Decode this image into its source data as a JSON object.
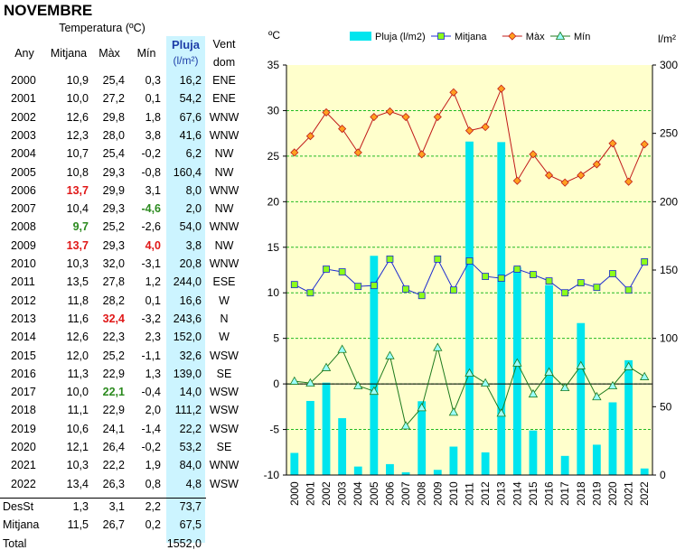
{
  "page": {
    "title": "NOVEMBRE"
  },
  "table": {
    "header": {
      "group_label": "Temperatura (ºC)",
      "any": "Any",
      "mitjana": "Mitjana",
      "max": "Màx",
      "min": "Mín",
      "pluja": "Pluja",
      "pluja_unit": "(l/m²)",
      "vent": "Vent",
      "vent_sub": "dom"
    },
    "rows": [
      {
        "any": "2000",
        "mitjana": "10,9",
        "max": "25,4",
        "min": "0,3",
        "pluja": "16,2",
        "vent": "ENE"
      },
      {
        "any": "2001",
        "mitjana": "10,0",
        "max": "27,2",
        "min": "0,1",
        "pluja": "54,2",
        "vent": "ENE"
      },
      {
        "any": "2002",
        "mitjana": "12,6",
        "max": "29,8",
        "min": "1,8",
        "pluja": "67,6",
        "vent": "WNW"
      },
      {
        "any": "2003",
        "mitjana": "12,3",
        "max": "28,0",
        "min": "3,8",
        "pluja": "41,6",
        "vent": "WNW"
      },
      {
        "any": "2004",
        "mitjana": "10,7",
        "max": "25,4",
        "min": "-0,2",
        "pluja": "6,2",
        "vent": "NW"
      },
      {
        "any": "2005",
        "mitjana": "10,8",
        "max": "29,3",
        "min": "-0,8",
        "pluja": "160,4",
        "vent": "NW"
      },
      {
        "any": "2006",
        "mitjana": "13,7",
        "max": "29,9",
        "min": "3,1",
        "pluja": "8,0",
        "vent": "WNW"
      },
      {
        "any": "2007",
        "mitjana": "10,4",
        "max": "29,3",
        "min": "-4,6",
        "pluja": "2,0",
        "vent": "NW"
      },
      {
        "any": "2008",
        "mitjana": "9,7",
        "max": "25,2",
        "min": "-2,6",
        "pluja": "54,0",
        "vent": "WNW"
      },
      {
        "any": "2009",
        "mitjana": "13,7",
        "max": "29,3",
        "min": "4,0",
        "pluja": "3,8",
        "vent": "NW"
      },
      {
        "any": "2010",
        "mitjana": "10,3",
        "max": "32,0",
        "min": "-3,1",
        "pluja": "20,8",
        "vent": "WNW"
      },
      {
        "any": "2011",
        "mitjana": "13,5",
        "max": "27,8",
        "min": "1,2",
        "pluja": "244,0",
        "vent": "ESE"
      },
      {
        "any": "2012",
        "mitjana": "11,8",
        "max": "28,2",
        "min": "0,1",
        "pluja": "16,6",
        "vent": "W"
      },
      {
        "any": "2013",
        "mitjana": "11,6",
        "max": "32,4",
        "min": "-3,2",
        "pluja": "243,6",
        "vent": "N"
      },
      {
        "any": "2014",
        "mitjana": "12,6",
        "max": "22,3",
        "min": "2,3",
        "pluja": "152,0",
        "vent": "W"
      },
      {
        "any": "2015",
        "mitjana": "12,0",
        "max": "25,2",
        "min": "-1,1",
        "pluja": "32,6",
        "vent": "WSW"
      },
      {
        "any": "2016",
        "mitjana": "11,3",
        "max": "22,9",
        "min": "1,3",
        "pluja": "139,0",
        "vent": "SE"
      },
      {
        "any": "2017",
        "mitjana": "10,0",
        "max": "22,1",
        "min": "-0,4",
        "pluja": "14,0",
        "vent": "WSW"
      },
      {
        "any": "2018",
        "mitjana": "11,1",
        "max": "22,9",
        "min": "2,0",
        "pluja": "111,2",
        "vent": "WSW"
      },
      {
        "any": "2019",
        "mitjana": "10,6",
        "max": "24,1",
        "min": "-1,4",
        "pluja": "22,2",
        "vent": "WSW"
      },
      {
        "any": "2020",
        "mitjana": "12,1",
        "max": "26,4",
        "min": "-0,2",
        "pluja": "53,2",
        "vent": "SE"
      },
      {
        "any": "2021",
        "mitjana": "10,3",
        "max": "22,2",
        "min": "1,9",
        "pluja": "84,0",
        "vent": "WNW"
      },
      {
        "any": "2022",
        "mitjana": "13,4",
        "max": "26,3",
        "min": "0,8",
        "pluja": "4,8",
        "vent": "WSW"
      }
    ],
    "highlights": {
      "red": [
        [
          "2006",
          "mitjana"
        ],
        [
          "2009",
          "mitjana"
        ],
        [
          "2013",
          "max"
        ],
        [
          "2009",
          "min"
        ]
      ],
      "green": [
        [
          "2008",
          "mitjana"
        ],
        [
          "2017",
          "max"
        ],
        [
          "2007",
          "min"
        ]
      ]
    },
    "summary": [
      {
        "label": "DesSt",
        "mitjana": "1,3",
        "max": "3,1",
        "min": "2,2",
        "pluja": "73,7"
      },
      {
        "label": "Mitjana",
        "mitjana": "11,5",
        "max": "26,7",
        "min": "0,2",
        "pluja": "67,5"
      },
      {
        "label": "Total",
        "mitjana": "",
        "max": "",
        "min": "",
        "pluja": "1552,0"
      }
    ]
  },
  "chart_data": {
    "type": "bar+line",
    "categories": [
      "2000",
      "2001",
      "2002",
      "2003",
      "2004",
      "2005",
      "2006",
      "2007",
      "2008",
      "2009",
      "2010",
      "2011",
      "2012",
      "2013",
      "2014",
      "2015",
      "2016",
      "2017",
      "2018",
      "2019",
      "2020",
      "2021",
      "2022"
    ],
    "series": [
      {
        "name": "Pluja (l/m2)",
        "type": "bar",
        "axis": "right",
        "color": "#00e5ee",
        "values": [
          16.2,
          54.2,
          67.6,
          41.6,
          6.2,
          160.4,
          8.0,
          2.0,
          54.0,
          3.8,
          20.8,
          244.0,
          16.6,
          243.6,
          152.0,
          32.6,
          139.0,
          14.0,
          111.2,
          22.2,
          53.2,
          84.0,
          4.8
        ]
      },
      {
        "name": "Mitjana",
        "type": "line",
        "axis": "left",
        "color": "#1c2bd0",
        "marker": "square",
        "marker_color": "#8cff1a",
        "values": [
          10.9,
          10.0,
          12.6,
          12.3,
          10.7,
          10.8,
          13.7,
          10.4,
          9.7,
          13.7,
          10.3,
          13.5,
          11.8,
          11.6,
          12.6,
          12.0,
          11.3,
          10.0,
          11.1,
          10.6,
          12.1,
          10.3,
          13.4
        ]
      },
      {
        "name": "Màx",
        "type": "line",
        "axis": "left",
        "color": "#c01818",
        "marker": "diamond",
        "marker_color": "#ffa020",
        "values": [
          25.4,
          27.2,
          29.8,
          28.0,
          25.4,
          29.3,
          29.9,
          29.3,
          25.2,
          29.3,
          32.0,
          27.8,
          28.2,
          32.4,
          22.3,
          25.2,
          22.9,
          22.1,
          22.9,
          24.1,
          26.4,
          22.2,
          26.3
        ]
      },
      {
        "name": "Mín",
        "type": "line",
        "axis": "left",
        "color": "#1e7a1e",
        "marker": "triangle",
        "marker_color": "#9affff",
        "values": [
          0.3,
          0.1,
          1.8,
          3.8,
          -0.2,
          -0.8,
          3.1,
          -4.6,
          -2.6,
          4.0,
          -3.1,
          1.2,
          0.1,
          -3.2,
          2.3,
          -1.1,
          1.3,
          -0.4,
          2.0,
          -1.4,
          -0.2,
          1.9,
          0.8
        ]
      }
    ],
    "ylabel_left": "ºC",
    "ylabel_right": "l/m²",
    "ylim_left": [
      -10,
      35
    ],
    "ylim_right": [
      0,
      300
    ],
    "yticks_left": [
      -10,
      -5,
      0,
      5,
      10,
      15,
      20,
      25,
      30,
      35
    ],
    "yticks_right": [
      0,
      50,
      100,
      150,
      200,
      250,
      300
    ],
    "grid": "horizontal dashed",
    "legend": "top",
    "plot_background": "#ffffcc"
  }
}
